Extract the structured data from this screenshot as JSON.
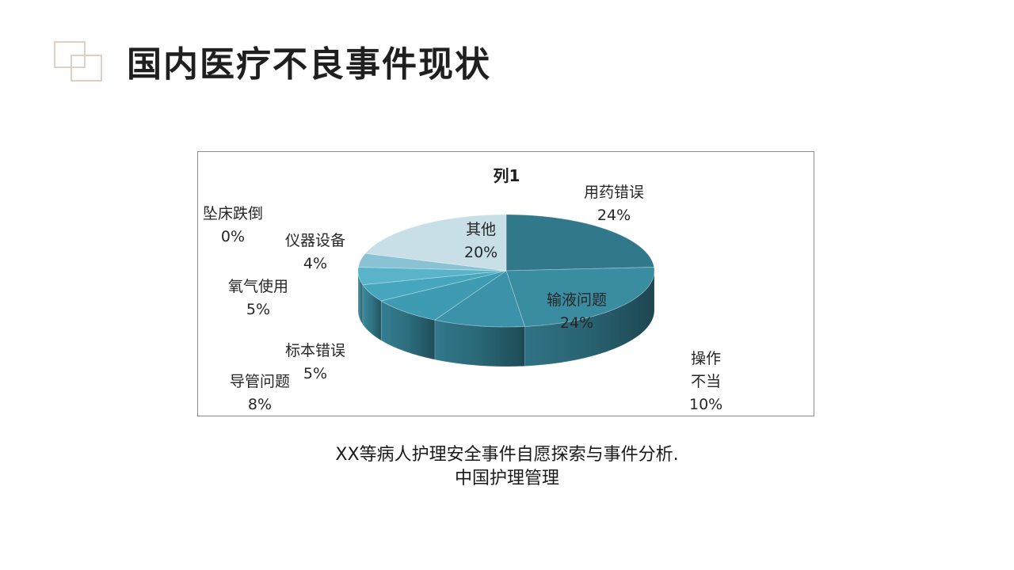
{
  "header": {
    "title": "国内医疗不良事件现状"
  },
  "source": {
    "line1": "XX等病人护理安全事件自愿探索与事件分析.",
    "line2": "中国护理管理"
  },
  "chart_data": {
    "type": "pie",
    "title": "列1",
    "style": "3d",
    "legend": "none",
    "categories": [
      "用药错误",
      "输液问题",
      "操作不当",
      "导管问题",
      "标本错误",
      "氧气使用",
      "仪器设备",
      "坠床跌倒",
      "其他"
    ],
    "values": [
      24,
      24,
      10,
      8,
      5,
      5,
      4,
      0,
      20
    ],
    "labels": [
      {
        "name_lines": [
          "用药错误"
        ],
        "pct": "24%"
      },
      {
        "name_lines": [
          "输液问题"
        ],
        "pct": "24%"
      },
      {
        "name_lines": [
          "操作",
          "不当"
        ],
        "pct": "10%"
      },
      {
        "name_lines": [
          "导管问题"
        ],
        "pct": "8%"
      },
      {
        "name_lines": [
          "标本错误"
        ],
        "pct": "5%"
      },
      {
        "name_lines": [
          "氧气使用"
        ],
        "pct": "5%"
      },
      {
        "name_lines": [
          "仪器设备"
        ],
        "pct": "4%"
      },
      {
        "name_lines": [
          "坠床跌倒"
        ],
        "pct": "0%"
      },
      {
        "name_lines": [
          "其他"
        ],
        "pct": "20%"
      }
    ],
    "colors": [
      "#31788a",
      "#3a8ca1",
      "#3c93a9",
      "#3f9bb2",
      "#45a6bd",
      "#59b3c9",
      "#89c3d3",
      "#a7d1dd",
      "#c9dfe8"
    ]
  }
}
